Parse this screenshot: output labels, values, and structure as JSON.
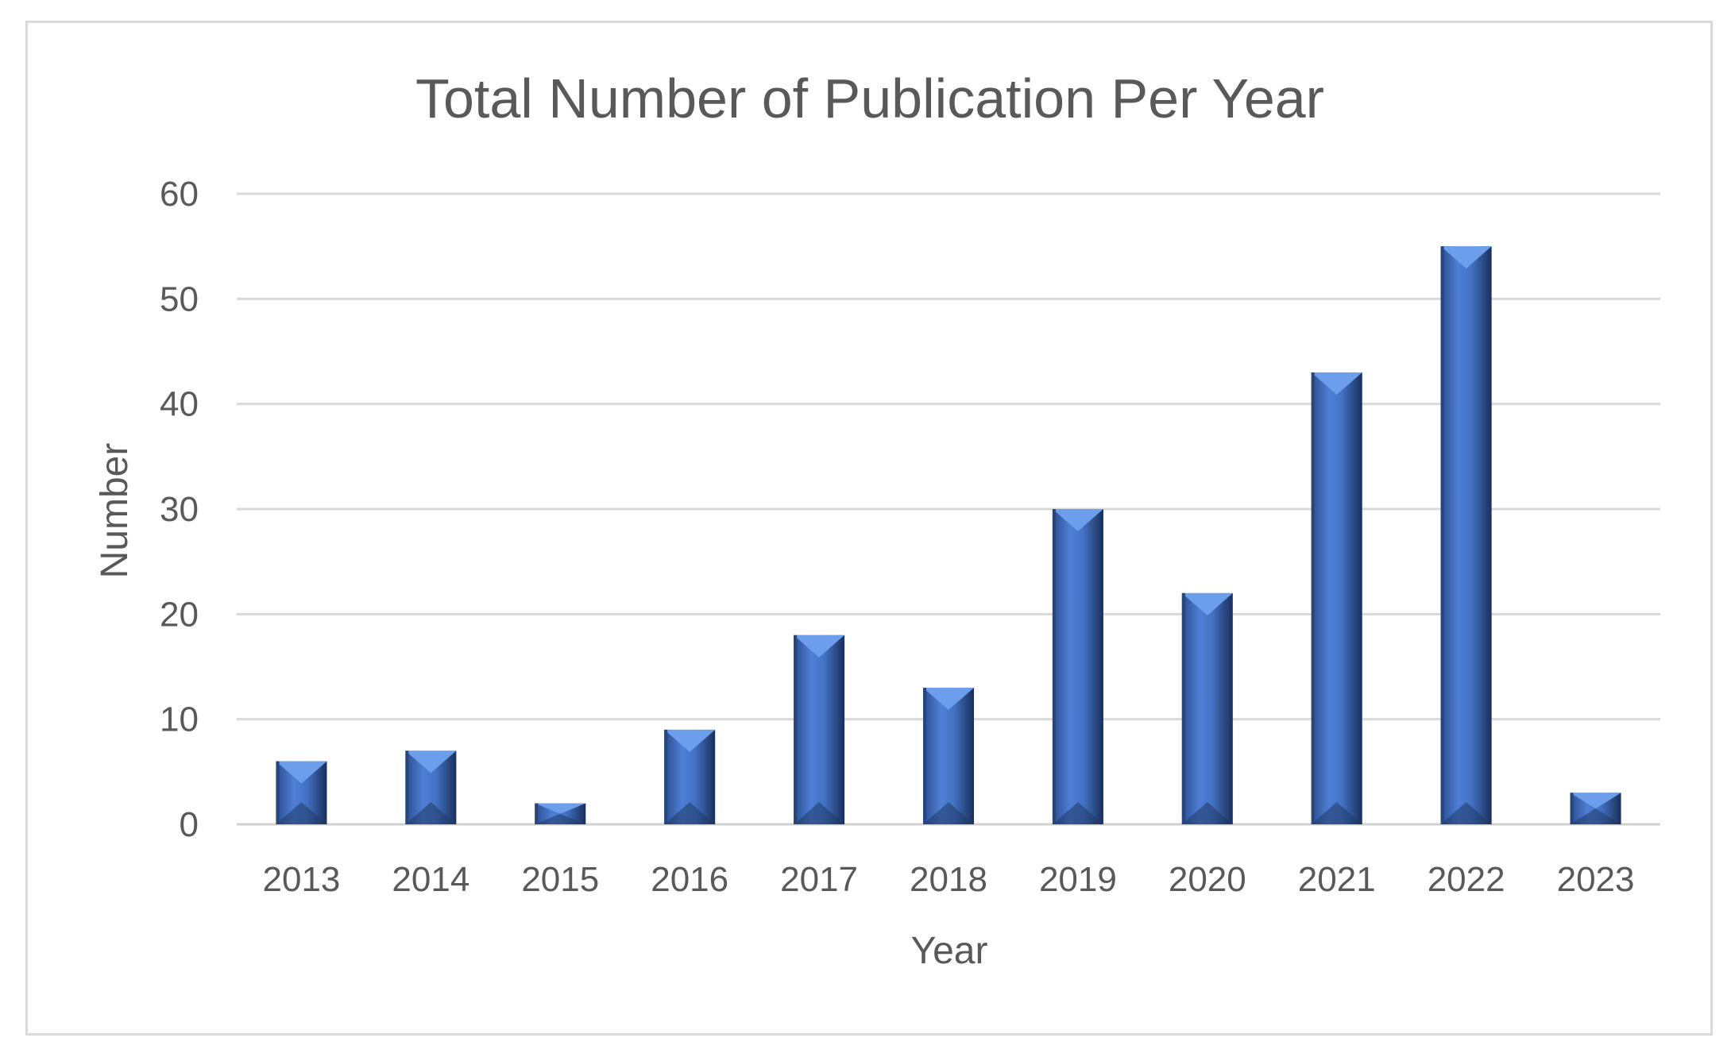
{
  "chart_data": {
    "type": "bar",
    "title": "Total Number of Publication Per Year",
    "xlabel": "Year",
    "ylabel": "Number",
    "categories": [
      "2013",
      "2014",
      "2015",
      "2016",
      "2017",
      "2018",
      "2019",
      "2020",
      "2021",
      "2022",
      "2023"
    ],
    "values": [
      6,
      7,
      2,
      9,
      18,
      13,
      30,
      22,
      43,
      55,
      3
    ],
    "ylim": [
      0,
      60
    ],
    "yticks": [
      "0",
      "10",
      "20",
      "30",
      "40",
      "50",
      "60"
    ],
    "grid": true,
    "legend": "none",
    "bar_color": "#4472c4",
    "bar_light": "#6d9eeb",
    "bar_dark": "#1f3864"
  }
}
